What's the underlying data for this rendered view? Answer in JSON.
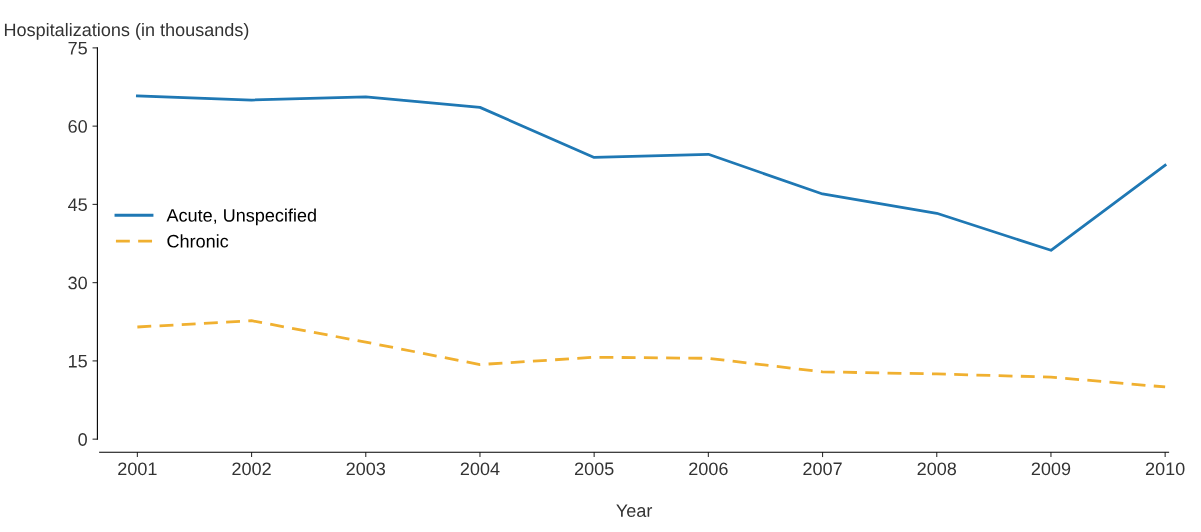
{
  "chart_data": {
    "type": "line",
    "ylabel": "Hospitalizations (in thousands)",
    "xlabel": "Year",
    "categories": [
      "2001",
      "2002",
      "2003",
      "2004",
      "2005",
      "2006",
      "2007",
      "2008",
      "2009",
      "2010"
    ],
    "series": [
      {
        "name": "Acute, Unspecified",
        "color": "#1f78b4",
        "values": [
          65.8,
          65,
          65.6,
          63.6,
          54,
          54.6,
          47,
          43.3,
          36.2,
          52.5
        ],
        "line_style": "solid"
      },
      {
        "name": "Chronic",
        "color": "#f0b030",
        "values": [
          21.5,
          22.7,
          18.6,
          14.3,
          15.7,
          15.5,
          12.9,
          12.5,
          11.9,
          10
        ],
        "line_style": "dashed"
      }
    ],
    "ylim": [
      -2.5,
      75
    ],
    "yticks": [
      0,
      15,
      30,
      45,
      60,
      75
    ],
    "grid": false,
    "legend": "center left",
    "marker": "none"
  }
}
